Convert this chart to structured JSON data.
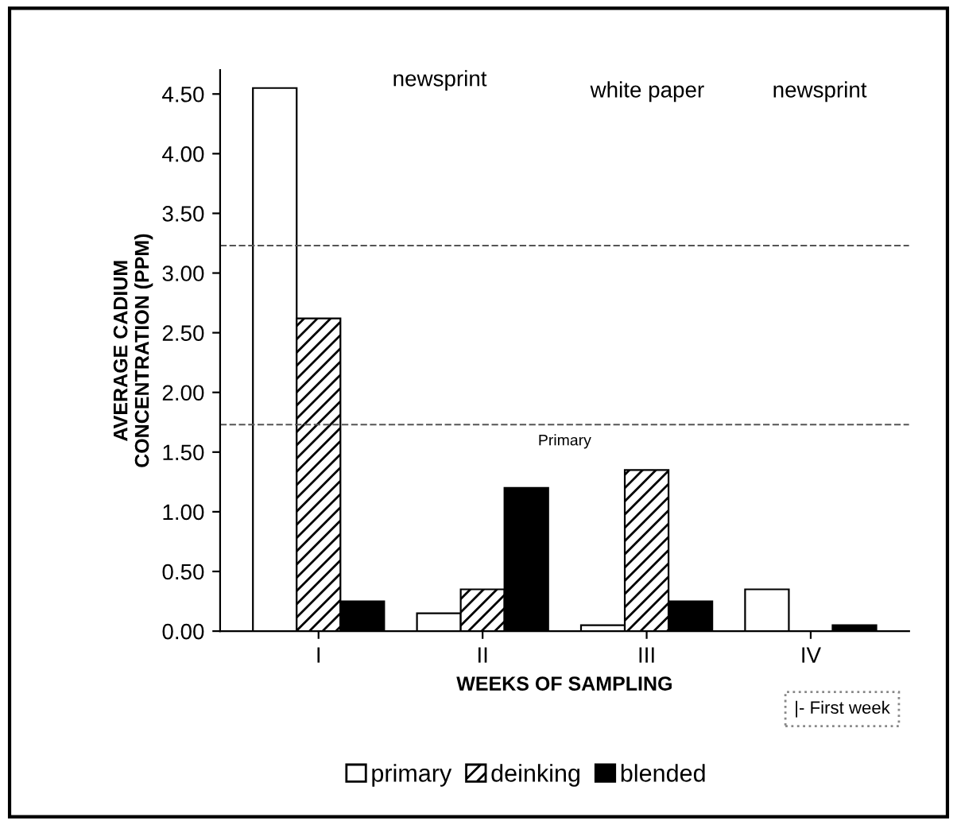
{
  "chart_data": {
    "type": "bar",
    "categories": [
      "I",
      "II",
      "III",
      "IV"
    ],
    "series": [
      {
        "name": "primary",
        "color": "#ffffff",
        "values": [
          4.55,
          0.15,
          0.05,
          0.35
        ]
      },
      {
        "name": "deinking",
        "color": "#000000",
        "values": [
          2.62,
          0.35,
          1.35,
          null
        ]
      },
      {
        "name": "blended",
        "color": "#000000",
        "values": [
          0.25,
          1.2,
          0.25,
          0.05
        ]
      }
    ],
    "xlabel": "WEEKS OF SAMPLING",
    "ylabel": "AVERAGE CADIUM\nCONCENTRATION (PPM)",
    "ylim": [
      0,
      4.7
    ],
    "yticks": [
      {
        "value": 0,
        "label": "0.00"
      },
      {
        "value": 0.5,
        "label": "0.50"
      },
      {
        "value": 1,
        "label": "1.00"
      },
      {
        "value": 1.5,
        "label": "1.50"
      },
      {
        "value": 2,
        "label": "2.00"
      },
      {
        "value": 2.5,
        "label": "2.50"
      },
      {
        "value": 3,
        "label": "3.00"
      },
      {
        "value": 3.5,
        "label": "3.50"
      },
      {
        "value": 4,
        "label": "4.00"
      },
      {
        "value": 4.5,
        "label": "4.50"
      }
    ],
    "ref_lines": [
      {
        "axis": "y",
        "value": 3.23,
        "line_style": "dashed",
        "color": "#555555"
      },
      {
        "axis": "y",
        "value": 1.73,
        "label": "Primary",
        "line_style": "dashed",
        "color": "#555555"
      }
    ],
    "annotations": [
      "newsprint",
      "white paper",
      "newsprint",
      "|- First week"
    ],
    "legend": "bottom",
    "grid": false
  }
}
